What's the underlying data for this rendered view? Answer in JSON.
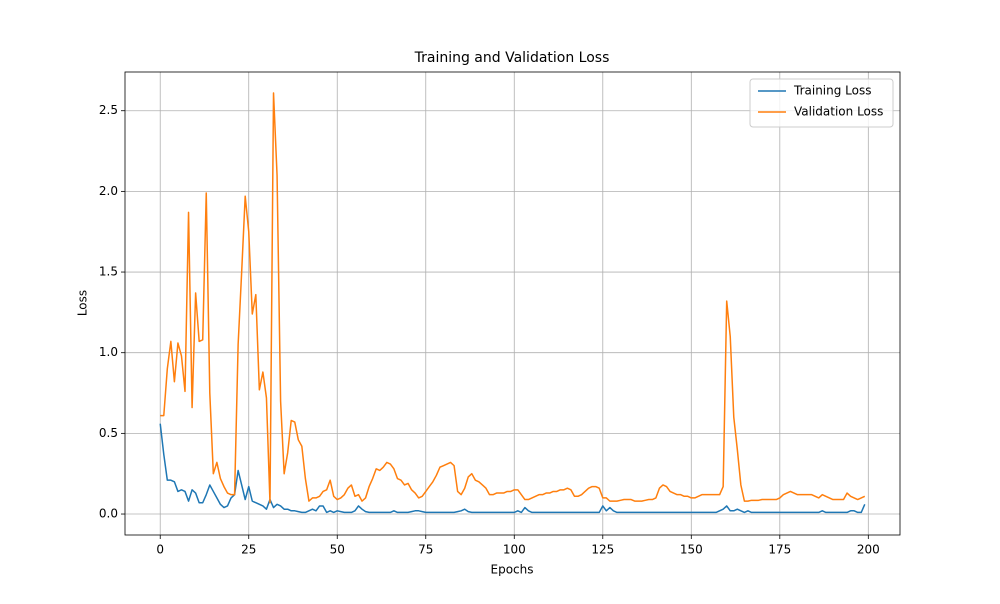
{
  "chart_data": {
    "type": "line",
    "title": "Training and Validation Loss",
    "x_label": "Epochs",
    "y_label": "Loss",
    "x": [
      0,
      1,
      2,
      3,
      4,
      5,
      6,
      7,
      8,
      9,
      10,
      11,
      12,
      13,
      14,
      15,
      16,
      17,
      18,
      19,
      20,
      21,
      22,
      23,
      24,
      25,
      26,
      27,
      28,
      29,
      30,
      31,
      32,
      33,
      34,
      35,
      36,
      37,
      38,
      39,
      40,
      41,
      42,
      43,
      44,
      45,
      46,
      47,
      48,
      49,
      50,
      51,
      52,
      53,
      54,
      55,
      56,
      57,
      58,
      59,
      60,
      61,
      62,
      63,
      64,
      65,
      66,
      67,
      68,
      69,
      70,
      71,
      72,
      73,
      74,
      75,
      76,
      77,
      78,
      79,
      80,
      81,
      82,
      83,
      84,
      85,
      86,
      87,
      88,
      89,
      90,
      91,
      92,
      93,
      94,
      95,
      96,
      97,
      98,
      99,
      100,
      101,
      102,
      103,
      104,
      105,
      106,
      107,
      108,
      109,
      110,
      111,
      112,
      113,
      114,
      115,
      116,
      117,
      118,
      119,
      120,
      121,
      122,
      123,
      124,
      125,
      126,
      127,
      128,
      129,
      130,
      131,
      132,
      133,
      134,
      135,
      136,
      137,
      138,
      139,
      140,
      141,
      142,
      143,
      144,
      145,
      146,
      147,
      148,
      149,
      150,
      151,
      152,
      153,
      154,
      155,
      156,
      157,
      158,
      159,
      160,
      161,
      162,
      163,
      164,
      165,
      166,
      167,
      168,
      169,
      170,
      171,
      172,
      173,
      174,
      175,
      176,
      177,
      178,
      179,
      180,
      181,
      182,
      183,
      184,
      185,
      186,
      187,
      188,
      189,
      190,
      191,
      192,
      193,
      194,
      195,
      196,
      197,
      198,
      199
    ],
    "series": [
      {
        "name": "Training Loss",
        "color": "#1f77b4",
        "values": [
          0.56,
          0.37,
          0.21,
          0.21,
          0.2,
          0.14,
          0.15,
          0.14,
          0.08,
          0.15,
          0.13,
          0.07,
          0.07,
          0.12,
          0.18,
          0.14,
          0.1,
          0.06,
          0.04,
          0.05,
          0.1,
          0.12,
          0.27,
          0.18,
          0.09,
          0.17,
          0.08,
          0.07,
          0.06,
          0.05,
          0.03,
          0.09,
          0.04,
          0.06,
          0.05,
          0.03,
          0.03,
          0.02,
          0.02,
          0.015,
          0.01,
          0.01,
          0.02,
          0.03,
          0.02,
          0.05,
          0.05,
          0.01,
          0.02,
          0.01,
          0.02,
          0.015,
          0.01,
          0.01,
          0.01,
          0.02,
          0.05,
          0.03,
          0.015,
          0.01,
          0.01,
          0.01,
          0.01,
          0.01,
          0.01,
          0.01,
          0.02,
          0.01,
          0.01,
          0.01,
          0.01,
          0.015,
          0.02,
          0.02,
          0.015,
          0.01,
          0.01,
          0.01,
          0.01,
          0.01,
          0.01,
          0.01,
          0.01,
          0.01,
          0.015,
          0.02,
          0.03,
          0.015,
          0.01,
          0.01,
          0.01,
          0.01,
          0.01,
          0.01,
          0.01,
          0.01,
          0.01,
          0.01,
          0.01,
          0.01,
          0.01,
          0.02,
          0.01,
          0.04,
          0.02,
          0.01,
          0.01,
          0.01,
          0.01,
          0.01,
          0.01,
          0.01,
          0.01,
          0.01,
          0.01,
          0.01,
          0.01,
          0.01,
          0.01,
          0.01,
          0.01,
          0.01,
          0.01,
          0.01,
          0.01,
          0.05,
          0.02,
          0.04,
          0.02,
          0.01,
          0.01,
          0.01,
          0.01,
          0.01,
          0.01,
          0.01,
          0.01,
          0.01,
          0.01,
          0.01,
          0.01,
          0.01,
          0.01,
          0.01,
          0.01,
          0.01,
          0.01,
          0.01,
          0.01,
          0.01,
          0.01,
          0.01,
          0.01,
          0.01,
          0.01,
          0.01,
          0.01,
          0.01,
          0.02,
          0.03,
          0.05,
          0.02,
          0.02,
          0.03,
          0.02,
          0.01,
          0.02,
          0.01,
          0.01,
          0.01,
          0.01,
          0.01,
          0.01,
          0.01,
          0.01,
          0.01,
          0.01,
          0.01,
          0.01,
          0.01,
          0.01,
          0.01,
          0.01,
          0.01,
          0.01,
          0.01,
          0.01,
          0.02,
          0.01,
          0.01,
          0.01,
          0.01,
          0.01,
          0.01,
          0.01,
          0.02,
          0.02,
          0.01,
          0.01,
          0.06
        ]
      },
      {
        "name": "Validation Loss",
        "color": "#ff7f0e",
        "values": [
          0.61,
          0.61,
          0.9,
          1.07,
          0.82,
          1.06,
          0.98,
          0.76,
          1.87,
          0.66,
          1.37,
          1.07,
          1.08,
          1.99,
          0.75,
          0.25,
          0.32,
          0.22,
          0.17,
          0.13,
          0.12,
          0.12,
          1.05,
          1.5,
          1.97,
          1.75,
          1.24,
          1.36,
          0.77,
          0.88,
          0.72,
          0.07,
          2.61,
          2.1,
          0.7,
          0.25,
          0.38,
          0.58,
          0.57,
          0.46,
          0.42,
          0.22,
          0.08,
          0.1,
          0.1,
          0.11,
          0.14,
          0.15,
          0.21,
          0.11,
          0.09,
          0.1,
          0.12,
          0.16,
          0.18,
          0.11,
          0.12,
          0.08,
          0.1,
          0.17,
          0.22,
          0.28,
          0.27,
          0.29,
          0.32,
          0.31,
          0.28,
          0.22,
          0.21,
          0.18,
          0.19,
          0.15,
          0.13,
          0.1,
          0.11,
          0.14,
          0.17,
          0.2,
          0.24,
          0.29,
          0.3,
          0.31,
          0.32,
          0.3,
          0.14,
          0.12,
          0.16,
          0.23,
          0.25,
          0.21,
          0.2,
          0.18,
          0.16,
          0.12,
          0.12,
          0.13,
          0.13,
          0.13,
          0.14,
          0.14,
          0.15,
          0.15,
          0.12,
          0.09,
          0.09,
          0.1,
          0.11,
          0.12,
          0.12,
          0.13,
          0.13,
          0.14,
          0.14,
          0.15,
          0.15,
          0.16,
          0.15,
          0.11,
          0.11,
          0.12,
          0.14,
          0.16,
          0.17,
          0.17,
          0.16,
          0.1,
          0.1,
          0.08,
          0.08,
          0.08,
          0.085,
          0.09,
          0.09,
          0.09,
          0.08,
          0.08,
          0.08,
          0.085,
          0.09,
          0.09,
          0.1,
          0.16,
          0.18,
          0.17,
          0.14,
          0.13,
          0.12,
          0.12,
          0.11,
          0.11,
          0.1,
          0.1,
          0.11,
          0.12,
          0.12,
          0.12,
          0.12,
          0.12,
          0.12,
          0.17,
          1.32,
          1.1,
          0.6,
          0.4,
          0.18,
          0.08,
          0.08,
          0.085,
          0.085,
          0.085,
          0.09,
          0.09,
          0.09,
          0.09,
          0.09,
          0.1,
          0.12,
          0.13,
          0.14,
          0.13,
          0.12,
          0.12,
          0.12,
          0.12,
          0.12,
          0.11,
          0.1,
          0.12,
          0.11,
          0.1,
          0.09,
          0.09,
          0.09,
          0.09,
          0.13,
          0.11,
          0.1,
          0.09,
          0.1,
          0.11
        ]
      }
    ],
    "xlim": [
      -9.95,
      208.95
    ],
    "ylim": [
      -0.13,
      2.74
    ],
    "xticks": [
      0,
      25,
      50,
      75,
      100,
      125,
      150,
      175,
      200
    ],
    "yticks": [
      {
        "value": 0,
        "label": "0.0"
      },
      0.5,
      {
        "value": 1,
        "label": "1.0"
      },
      1.5,
      {
        "value": 2,
        "label": "2.0"
      },
      2.5
    ],
    "grid": true,
    "legend": "upper right"
  }
}
